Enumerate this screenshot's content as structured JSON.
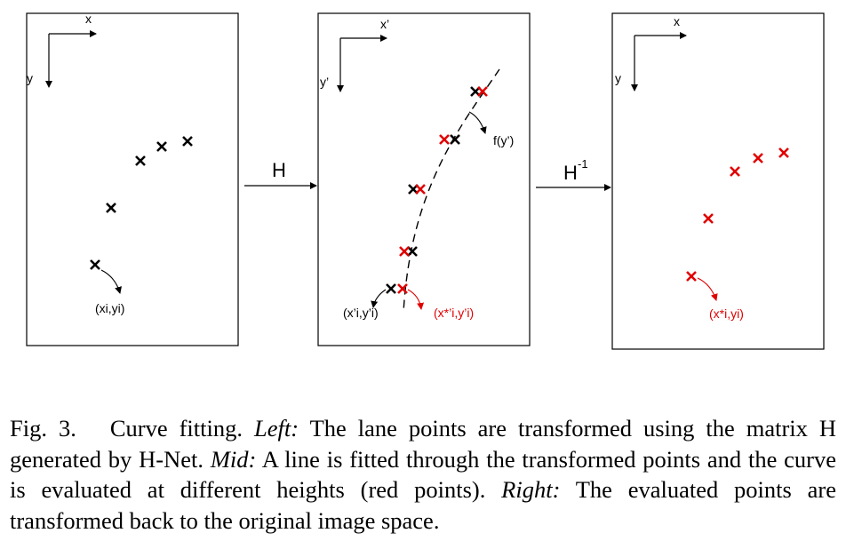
{
  "figure": {
    "operators": {
      "forward": {
        "label": "H",
        "superscript": ""
      },
      "inverse": {
        "label": "H",
        "superscript": "-1"
      }
    },
    "panels": {
      "left": {
        "x_axis_label": "x",
        "y_axis_label": "y",
        "point_label": "(xi,yi)",
        "point_color": "#000000"
      },
      "mid": {
        "x_axis_label": "x’",
        "y_axis_label": "y’",
        "curve_label": "f(y’)",
        "transformed_point_label": "(x’i,y’i)",
        "evaluated_point_label": "(x*’i,y’i)",
        "transformed_color": "#000000",
        "evaluated_color": "#e00000"
      },
      "right": {
        "x_axis_label": "x",
        "y_axis_label": "y",
        "point_label": "(x*i,yi)",
        "point_color": "#e00000"
      }
    }
  },
  "caption": {
    "figure_number": "Fig. 3.",
    "intro": "Curve fitting.",
    "left_label": "Left:",
    "left_text": "The lane points are transformed using the matrix H generated by H-Net.",
    "mid_label": "Mid:",
    "mid_text": "A line is fitted through the transformed points and the curve is evaluated at different heights (red points).",
    "right_label": "Right:",
    "right_text": "The evaluated points are transformed back to the original image space."
  }
}
